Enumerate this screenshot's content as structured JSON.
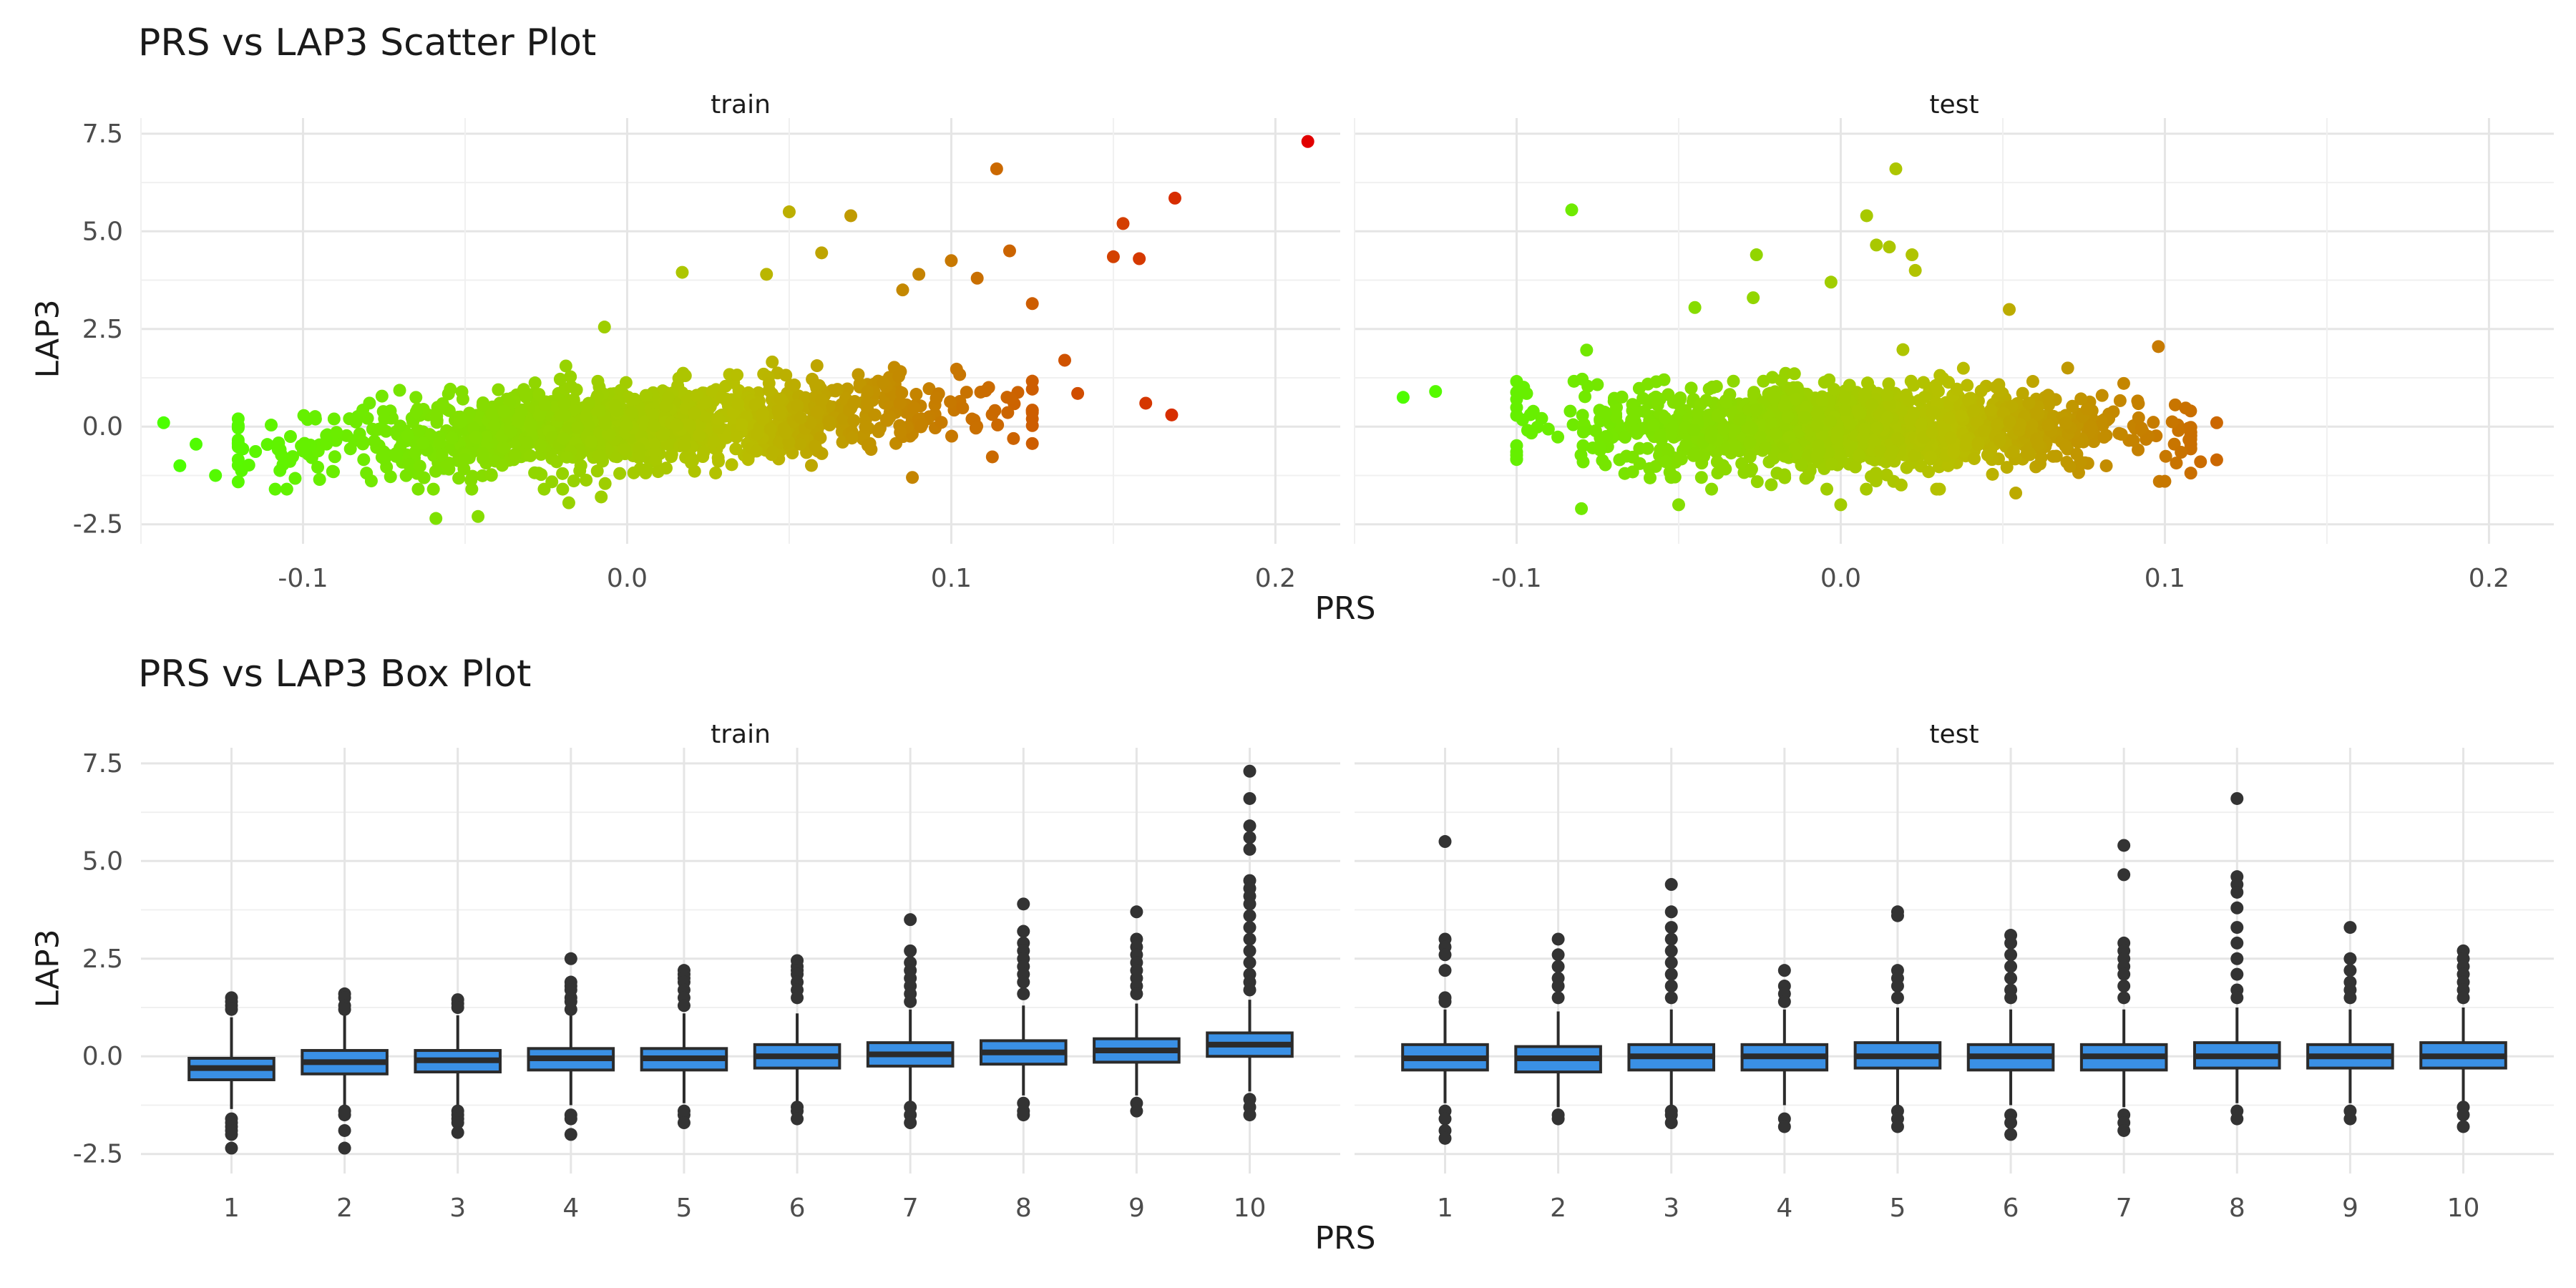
{
  "chart_data": [
    {
      "type": "scatter",
      "title": "PRS vs LAP3 Scatter Plot",
      "xlabel": "PRS",
      "ylabel": "LAP3",
      "facets": [
        "train",
        "test"
      ],
      "xlim": [
        -0.15,
        0.22
      ],
      "ylim": [
        -3.0,
        7.9
      ],
      "x_ticks": [
        "-0.1",
        "0.0",
        "0.1",
        "0.2"
      ],
      "x_tick_values": [
        -0.1,
        0.0,
        0.1,
        0.2
      ],
      "y_ticks": [
        "-2.5",
        "0.0",
        "2.5",
        "5.0",
        "7.5"
      ],
      "y_tick_values": [
        -2.5,
        0.0,
        2.5,
        5.0,
        7.5
      ],
      "color_scale": {
        "low": "#4cff00",
        "mid": "#b8bf00",
        "high": "#e10000"
      },
      "grid": true,
      "legend": "none",
      "series": [
        {
          "facet": "train",
          "cloud": {
            "x_min": -0.12,
            "x_max": 0.125,
            "slope": 4.5,
            "spread": 0.5
          },
          "points": [
            {
              "x": 0.21,
              "y": 7.3
            },
            {
              "x": 0.169,
              "y": 5.85
            },
            {
              "x": 0.153,
              "y": 5.2
            },
            {
              "x": 0.15,
              "y": 4.35
            },
            {
              "x": 0.158,
              "y": 4.3
            },
            {
              "x": 0.114,
              "y": 6.6
            },
            {
              "x": 0.05,
              "y": 5.5
            },
            {
              "x": 0.069,
              "y": 5.4
            },
            {
              "x": 0.16,
              "y": 0.6
            },
            {
              "x": 0.168,
              "y": 0.3
            },
            {
              "x": 0.135,
              "y": 1.7
            },
            {
              "x": 0.139,
              "y": 0.85
            },
            {
              "x": 0.125,
              "y": 3.15
            },
            {
              "x": 0.118,
              "y": 4.5
            },
            {
              "x": 0.1,
              "y": 4.25
            },
            {
              "x": 0.09,
              "y": 3.9
            },
            {
              "x": 0.06,
              "y": 4.45
            },
            {
              "x": 0.043,
              "y": 3.9
            },
            {
              "x": 0.017,
              "y": 3.95
            },
            {
              "x": -0.007,
              "y": 2.55
            },
            {
              "x": 0.085,
              "y": 3.5
            },
            {
              "x": 0.108,
              "y": 3.8
            },
            {
              "x": -0.143,
              "y": 0.1
            },
            {
              "x": -0.138,
              "y": -1.0
            },
            {
              "x": -0.133,
              "y": -0.45
            },
            {
              "x": -0.127,
              "y": -1.25
            },
            {
              "x": -0.12,
              "y": 0.2
            },
            {
              "x": -0.105,
              "y": -1.6
            },
            {
              "x": -0.059,
              "y": -2.35
            },
            {
              "x": -0.046,
              "y": -2.3
            },
            {
              "x": -0.018,
              "y": -1.95
            },
            {
              "x": 0.088,
              "y": -1.3
            },
            {
              "x": -0.008,
              "y": -1.8
            }
          ]
        },
        {
          "facet": "test",
          "cloud": {
            "x_min": -0.1,
            "x_max": 0.108,
            "slope": 0.0,
            "spread": 0.55
          },
          "points": [
            {
              "x": -0.083,
              "y": 5.55
            },
            {
              "x": 0.017,
              "y": 6.6
            },
            {
              "x": 0.008,
              "y": 5.4
            },
            {
              "x": 0.011,
              "y": 4.65
            },
            {
              "x": 0.015,
              "y": 4.6
            },
            {
              "x": -0.026,
              "y": 4.4
            },
            {
              "x": 0.022,
              "y": 4.4
            },
            {
              "x": 0.023,
              "y": 4.0
            },
            {
              "x": -0.003,
              "y": 3.7
            },
            {
              "x": -0.027,
              "y": 3.3
            },
            {
              "x": -0.045,
              "y": 3.05
            },
            {
              "x": 0.052,
              "y": 3.0
            },
            {
              "x": 0.098,
              "y": 2.05
            },
            {
              "x": -0.135,
              "y": 0.75
            },
            {
              "x": -0.125,
              "y": 0.9
            },
            {
              "x": -0.08,
              "y": -2.1
            },
            {
              "x": -0.05,
              "y": -2.0
            },
            {
              "x": 0.1,
              "y": -1.4
            },
            {
              "x": 0.111,
              "y": -0.9
            },
            {
              "x": 0.116,
              "y": 0.1
            },
            {
              "x": 0.116,
              "y": -0.85
            },
            {
              "x": 0.054,
              "y": -1.7
            },
            {
              "x": 0.0,
              "y": -2.0
            }
          ]
        }
      ]
    },
    {
      "type": "box",
      "title": "PRS vs LAP3 Box Plot",
      "xlabel": "PRS",
      "ylabel": "LAP3",
      "facets": [
        "train",
        "test"
      ],
      "categories": [
        "1",
        "2",
        "3",
        "4",
        "5",
        "6",
        "7",
        "8",
        "9",
        "10"
      ],
      "ylim": [
        -3.0,
        7.9
      ],
      "y_ticks": [
        "-2.5",
        "0.0",
        "2.5",
        "5.0",
        "7.5"
      ],
      "y_tick_values": [
        -2.5,
        0.0,
        2.5,
        5.0,
        7.5
      ],
      "box_fill": "#3a90e5",
      "box_stroke": "#2b2b2b",
      "grid": true,
      "series": [
        {
          "facet": "train",
          "q1": [
            -0.6,
            -0.45,
            -0.4,
            -0.35,
            -0.35,
            -0.3,
            -0.25,
            -0.2,
            -0.15,
            0.0
          ],
          "median": [
            -0.3,
            -0.15,
            -0.1,
            -0.05,
            -0.05,
            0.0,
            0.05,
            0.1,
            0.15,
            0.3
          ],
          "q3": [
            -0.05,
            0.15,
            0.15,
            0.2,
            0.2,
            0.3,
            0.35,
            0.4,
            0.45,
            0.6
          ],
          "whisker_low": [
            -1.35,
            -1.35,
            -1.25,
            -1.25,
            -1.2,
            -1.15,
            -1.15,
            -1.0,
            -1.0,
            -0.9
          ],
          "whisker_high": [
            1.0,
            1.1,
            1.05,
            1.05,
            1.1,
            1.1,
            1.2,
            1.3,
            1.35,
            1.45
          ],
          "outliers": [
            [
              1.5,
              1.4,
              1.3,
              1.2,
              -1.6,
              -1.7,
              -1.8,
              -1.9,
              -2.0,
              -2.35
            ],
            [
              1.6,
              1.5,
              1.3,
              1.2,
              -1.4,
              -1.5,
              -1.9,
              -2.35
            ],
            [
              1.45,
              1.35,
              1.25,
              -1.4,
              -1.5,
              -1.6,
              -1.7,
              -1.95
            ],
            [
              2.5,
              1.9,
              1.8,
              1.7,
              1.5,
              1.4,
              1.2,
              -1.5,
              -1.6,
              -2.0
            ],
            [
              2.2,
              2.1,
              2.0,
              1.9,
              1.7,
              1.5,
              1.3,
              -1.4,
              -1.5,
              -1.7
            ],
            [
              2.45,
              2.3,
              2.2,
              2.1,
              1.9,
              1.7,
              1.5,
              -1.3,
              -1.4,
              -1.6
            ],
            [
              3.5,
              2.7,
              2.4,
              2.2,
              2.0,
              1.8,
              1.6,
              1.4,
              -1.3,
              -1.5,
              -1.7
            ],
            [
              3.9,
              3.2,
              2.9,
              2.7,
              2.5,
              2.3,
              2.1,
              1.9,
              1.6,
              -1.2,
              -1.4,
              -1.5
            ],
            [
              3.7,
              3.0,
              2.8,
              2.6,
              2.4,
              2.2,
              2.0,
              1.8,
              1.6,
              -1.2,
              -1.4
            ],
            [
              7.3,
              6.6,
              5.9,
              5.6,
              5.3,
              4.5,
              4.3,
              4.1,
              3.9,
              3.6,
              3.3,
              3.0,
              2.7,
              2.4,
              2.1,
              1.9,
              1.7,
              -1.1,
              -1.3,
              -1.5
            ]
          ]
        },
        {
          "facet": "test",
          "q1": [
            -0.35,
            -0.4,
            -0.35,
            -0.35,
            -0.3,
            -0.35,
            -0.35,
            -0.3,
            -0.3,
            -0.3
          ],
          "median": [
            -0.05,
            -0.05,
            0.0,
            0.0,
            0.0,
            0.0,
            0.0,
            0.0,
            0.0,
            0.0
          ],
          "q3": [
            0.3,
            0.25,
            0.3,
            0.3,
            0.35,
            0.3,
            0.3,
            0.35,
            0.3,
            0.35
          ],
          "whisker_low": [
            -1.2,
            -1.3,
            -1.25,
            -1.25,
            -1.25,
            -1.25,
            -1.3,
            -1.2,
            -1.2,
            -1.2
          ],
          "whisker_high": [
            1.2,
            1.15,
            1.2,
            1.2,
            1.25,
            1.2,
            1.2,
            1.25,
            1.2,
            1.25
          ],
          "outliers": [
            [
              5.5,
              3.0,
              2.8,
              2.6,
              2.2,
              1.5,
              1.4,
              -1.4,
              -1.6,
              -1.9,
              -2.1
            ],
            [
              3.0,
              2.6,
              2.3,
              2.0,
              1.8,
              1.5,
              -1.5,
              -1.6
            ],
            [
              4.4,
              3.7,
              3.3,
              3.0,
              2.7,
              2.4,
              2.1,
              1.8,
              1.5,
              -1.4,
              -1.5,
              -1.7
            ],
            [
              2.2,
              1.8,
              1.6,
              1.4,
              -1.6,
              -1.8
            ],
            [
              3.7,
              3.6,
              2.2,
              2.0,
              1.8,
              1.5,
              -1.4,
              -1.6,
              -1.8
            ],
            [
              3.1,
              2.9,
              2.6,
              2.3,
              2.0,
              1.7,
              1.5,
              -1.5,
              -1.7,
              -2.0
            ],
            [
              5.4,
              4.65,
              2.9,
              2.7,
              2.5,
              2.3,
              2.1,
              1.8,
              1.5,
              -1.5,
              -1.7,
              -1.9
            ],
            [
              6.6,
              4.6,
              4.4,
              4.2,
              3.8,
              3.3,
              2.9,
              2.5,
              2.1,
              1.7,
              1.5,
              -1.4,
              -1.6
            ],
            [
              3.3,
              2.5,
              2.2,
              1.9,
              1.7,
              1.5,
              -1.4,
              -1.6
            ],
            [
              2.7,
              2.5,
              2.3,
              2.1,
              1.9,
              1.7,
              1.5,
              -1.3,
              -1.5,
              -1.8
            ]
          ]
        }
      ]
    }
  ]
}
